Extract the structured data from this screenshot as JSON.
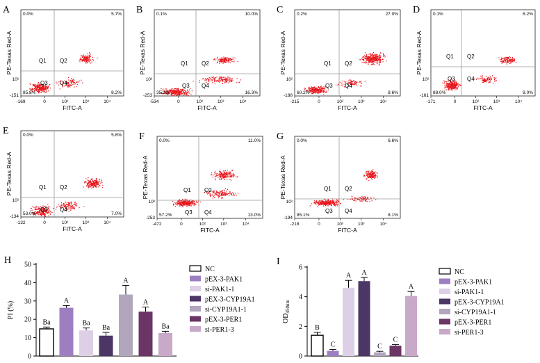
{
  "flow_panels": [
    {
      "letter": "A",
      "tl": "0.0%",
      "tr": "5.7%",
      "br": "8.2%",
      "bl": "85.8%",
      "xmin": "-169",
      "ymin": "-151",
      "ytick": "10²",
      "q1": "Q1",
      "q2": "Q2",
      "q3": "Q3",
      "q4": "Q4"
    },
    {
      "letter": "B",
      "tl": "0.1%",
      "tr": "10.0%",
      "br": "16.3%",
      "bl": "35.0%",
      "xmin": "-534",
      "ymin": "-253",
      "ytick": "10²",
      "q1": "Q1",
      "q2": "Q2",
      "q3": "Q3",
      "q4": "Q4"
    },
    {
      "letter": "C",
      "tl": "0.2%",
      "tr": "27.0%",
      "br": "8.6%",
      "bl": "60.2%",
      "xmin": "-215",
      "ymin": "-188",
      "ytick": "10²",
      "q1": "Q1",
      "q2": "Q2",
      "q3": "Q3",
      "q4": "Q4"
    },
    {
      "letter": "D",
      "tl": "0.1%",
      "tr": "6.2%",
      "br": "8.0%",
      "bl": "88.0%",
      "xmin": "-171",
      "ymin": "-161",
      "ytick": "10²",
      "q1": "Q1",
      "q2": "Q2",
      "q3": "Q3",
      "q4": "Q4"
    },
    {
      "letter": "E",
      "tl": "0.0%",
      "tr": "5.8%",
      "br": "7.0%",
      "bl": "53.0%",
      "xmin": "-132",
      "ymin": "-134",
      "ytick": "10²",
      "q1": "Q1",
      "q2": "Q2",
      "q3": "Q3",
      "q4": "Q4"
    },
    {
      "letter": "F",
      "tl": "0.0%",
      "tr": "11.0%",
      "br": "13.0%",
      "bl": "57.2%",
      "xmin": "-472",
      "ymin": "-253",
      "ytick": "10²",
      "q1": "Q1",
      "q2": "Q2",
      "q3": "Q3",
      "q4": "Q4"
    },
    {
      "letter": "G",
      "tl": "0.0%",
      "tr": "6.6%",
      "br": "8.1%",
      "bl": "85.1%",
      "xmin": "-218",
      "ymin": "-194",
      "ytick": "10²",
      "q1": "Q1",
      "q2": "Q2",
      "q3": "Q3",
      "q4": "Q4"
    }
  ],
  "flow_axis": {
    "xlabel": "FITC-A",
    "ylabel": "PE-Texas Red-A",
    "ticks": [
      "0",
      "10²",
      "10³",
      "10⁴"
    ]
  },
  "legend": [
    "NC",
    "pEX-3-PAK1",
    "si-PAK1-1",
    "pEX-3-CYP19A1",
    "si-CYP19A1-1",
    "pEX-3-PER1",
    "si-PER1-3"
  ],
  "colors": {
    "bars": [
      "#ffffff",
      "#9d7fc1",
      "#ddd0e6",
      "#4b3666",
      "#b2a6bd",
      "#6b3565",
      "#c8a9c8"
    ],
    "dot": "#e8141b",
    "grid": "#9a9a9a"
  },
  "chart_data": [
    {
      "type": "bar",
      "panel": "H",
      "title": "",
      "ylabel": "PI (%)",
      "xlabel": "",
      "ylim": [
        0,
        50
      ],
      "yticks": [
        "0",
        "10",
        "20",
        "30",
        "40",
        "50"
      ],
      "categories": [
        "NC",
        "pEX-3-PAK1",
        "si-PAK1-1",
        "pEX-3-CYP19A1",
        "si-CYP19A1-1",
        "pEX-3-PER1",
        "si-PER1-3"
      ],
      "values": [
        14.8,
        26.3,
        14.0,
        11.1,
        33.5,
        24.2,
        12.5
      ],
      "errors": [
        1.0,
        1.2,
        1.3,
        1.8,
        5.0,
        2.5,
        1.0
      ],
      "labels": [
        "Ba",
        "A",
        "Ba",
        "Ba",
        "A",
        "A",
        "Ba"
      ]
    },
    {
      "type": "bar",
      "panel": "I",
      "title": "",
      "ylabel": "OD450nm",
      "xlabel": "",
      "ylim": [
        0,
        6
      ],
      "yticks": [
        "0",
        "2",
        "4",
        "6"
      ],
      "categories": [
        "NC",
        "pEX-3-PAK1",
        "si-PAK1-1",
        "pEX-3-CYP19A1",
        "si-CYP19A1-1",
        "pEX-3-PER1",
        "si-PER1-3"
      ],
      "values": [
        1.4,
        0.35,
        4.6,
        5.05,
        0.25,
        0.7,
        4.05
      ],
      "errors": [
        0.2,
        0.1,
        0.5,
        0.25,
        0.07,
        0.08,
        0.3
      ],
      "labels": [
        "B",
        "C",
        "A",
        "A",
        "C",
        "C",
        "A"
      ]
    }
  ]
}
